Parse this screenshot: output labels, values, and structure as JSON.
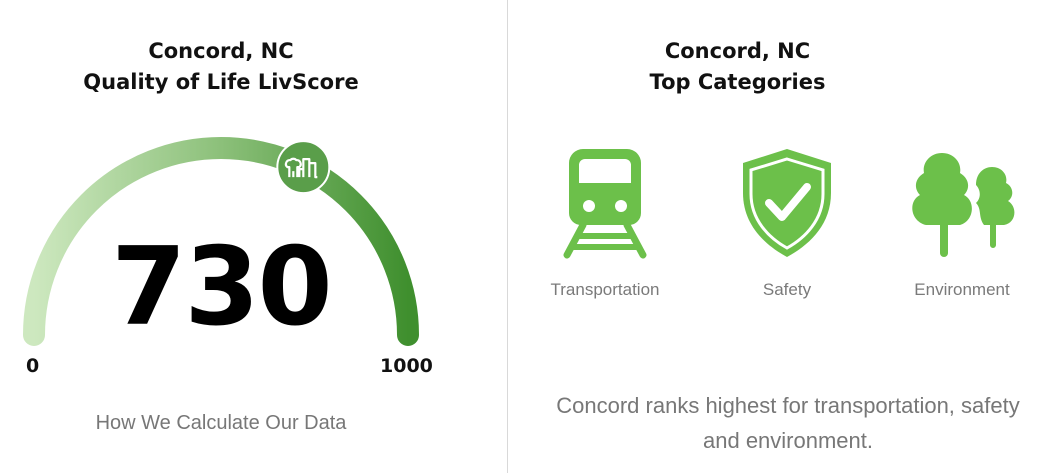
{
  "left": {
    "title_line1": "Concord, NC",
    "title_line2": "Quality of Life LivScore",
    "score": "730",
    "score_value": 730,
    "min_label": "0",
    "max_label": "1000",
    "min": 0,
    "max": 1000,
    "link": "How We Calculate Our Data",
    "marker_icon": "city-skyline-icon",
    "colors": {
      "gauge_start": "#cde8bf",
      "gauge_end": "#3f8f2e",
      "marker": "#5a9e4a"
    }
  },
  "right": {
    "title_line1": "Concord, NC",
    "title_line2": "Top Categories",
    "categories": [
      {
        "label": "Transportation",
        "icon": "train-icon"
      },
      {
        "label": "Safety",
        "icon": "shield-check-icon"
      },
      {
        "label": "Environment",
        "icon": "trees-icon"
      }
    ],
    "summary": "Concord ranks highest for transportation, safety and environment.",
    "icon_color": "#6cc04a"
  }
}
